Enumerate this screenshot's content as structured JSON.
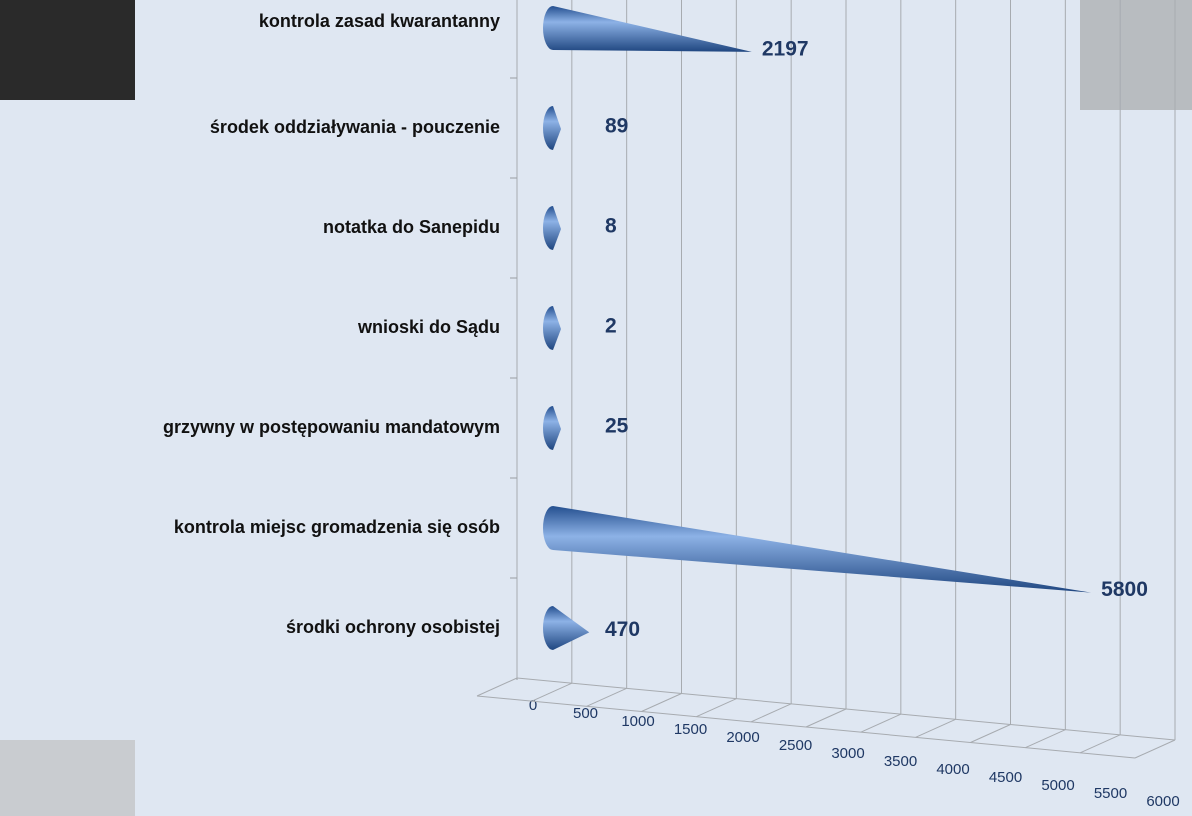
{
  "chart_data": {
    "type": "bar",
    "orientation": "horizontal",
    "categories": [
      "kontrola zasad kwarantanny",
      "środek oddziaływania - pouczenie",
      "notatka do Sanepidu",
      "wnioski do Sądu",
      "grzywny w postępowaniu mandatowym",
      "kontrola miejsc gromadzenia się osób",
      "środki ochrony osobistej"
    ],
    "values": [
      2197,
      89,
      8,
      2,
      25,
      5800,
      470
    ],
    "color": "#3f6fb5",
    "xlim": [
      0,
      6000
    ],
    "xticks": [
      0,
      500,
      1000,
      1500,
      2000,
      2500,
      3000,
      3500,
      4000,
      4500,
      5000,
      5500,
      6000
    ],
    "grid": true
  }
}
